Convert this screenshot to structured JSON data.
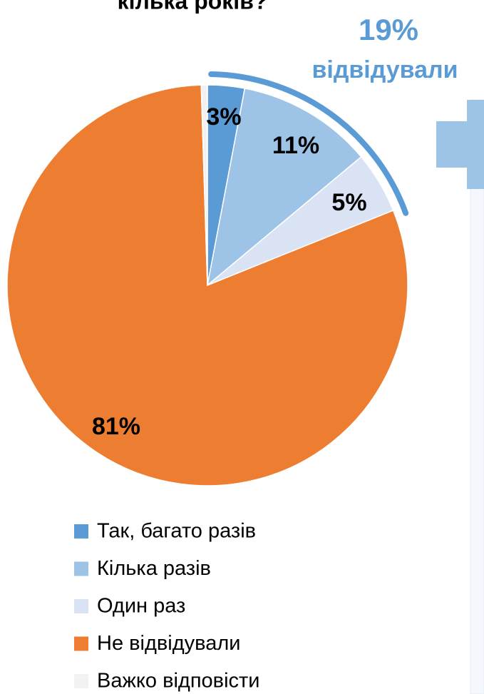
{
  "chart_data": {
    "type": "pie",
    "title": "кілька років?",
    "annotations": [
      "19%",
      "відвідували"
    ],
    "categories": [
      "Так, багато разів",
      "Кілька разів",
      "Один раз",
      "Не відвідували",
      "Важко відповісти"
    ],
    "values": [
      3,
      11,
      5,
      81,
      0.5
    ],
    "value_labels": [
      "3%",
      "11%",
      "5%",
      "81%",
      null
    ],
    "colors": [
      "#5b9bd5",
      "#9dc3e6",
      "#dae3f3",
      "#ed7d31",
      "#f2f2f2"
    ],
    "legend": "bottom"
  }
}
